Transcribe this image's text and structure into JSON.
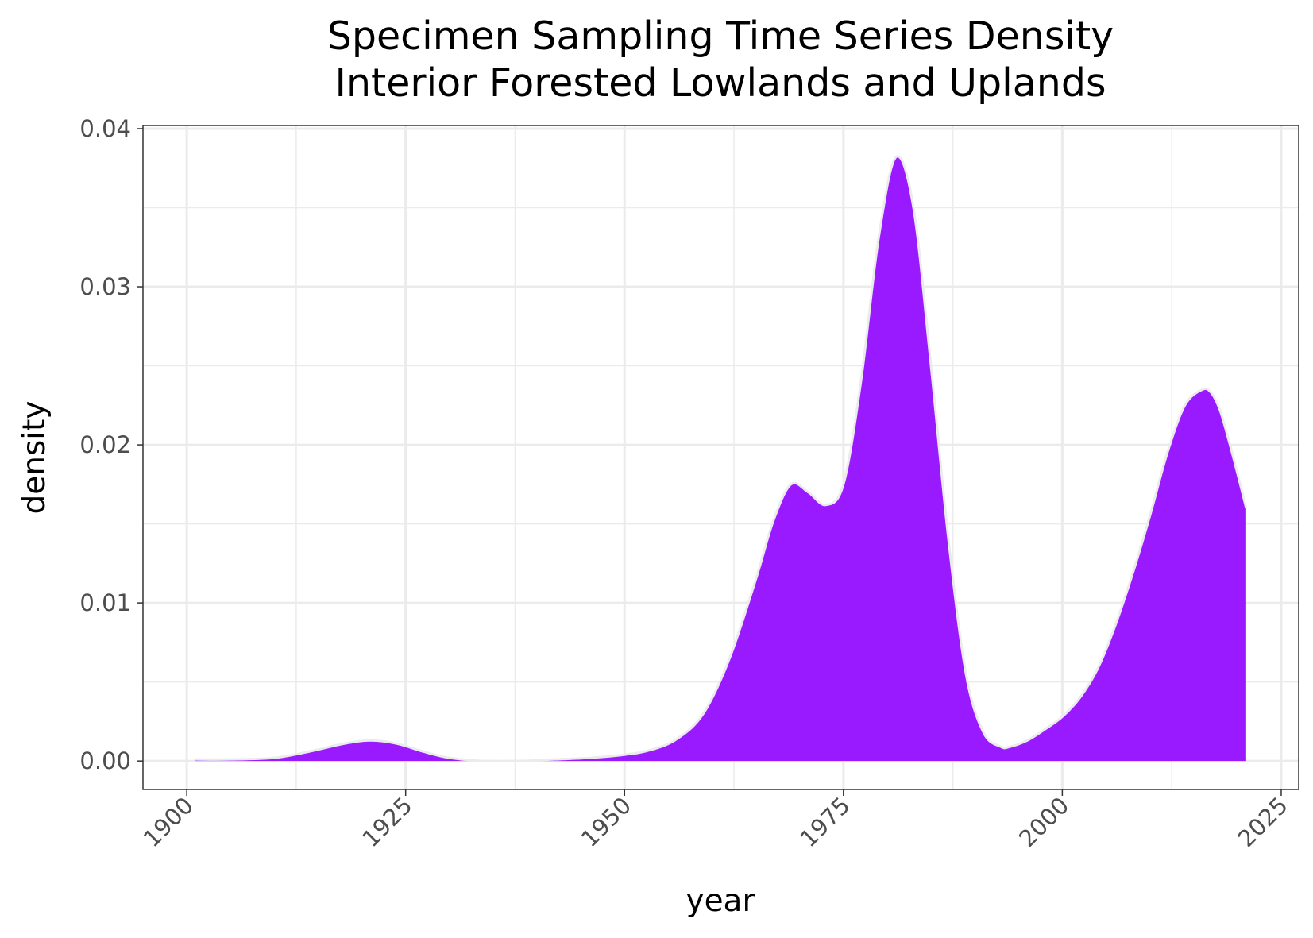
{
  "chart_data": {
    "type": "area",
    "title": "Specimen Sampling Time Series Density",
    "subtitle": "Interior Forested Lowlands and Uplands",
    "xlabel": "year",
    "ylabel": "density",
    "xlim": [
      1895,
      2027
    ],
    "ylim": [
      -0.0018,
      0.0402
    ],
    "x_ticks": [
      1900,
      1925,
      1950,
      1975,
      2000,
      2025
    ],
    "x_tick_labels": [
      "1900",
      "1925",
      "1950",
      "1975",
      "2000",
      "2025"
    ],
    "y_ticks": [
      0,
      0.01,
      0.02,
      0.03,
      0.04
    ],
    "y_tick_labels": [
      "0.00",
      "0.01",
      "0.02",
      "0.03",
      "0.04"
    ],
    "grid": true,
    "fill_color": "#9a1aff",
    "outline_color": "#ebebeb",
    "series": [
      {
        "x": [
          1901,
          1905,
          1910,
          1914,
          1918,
          1921,
          1924,
          1927,
          1930,
          1934,
          1938,
          1942,
          1946,
          1950,
          1953,
          1956,
          1959,
          1962,
          1965,
          1967,
          1969,
          1971,
          1973,
          1975,
          1977,
          1979,
          1981,
          1983,
          1985,
          1987,
          1989,
          1991,
          1993,
          1994,
          1996,
          1998,
          2000,
          2002,
          2004,
          2006,
          2008,
          2010,
          2012,
          2014,
          2016,
          2017,
          2018,
          2019,
          2020,
          2021
        ],
        "y": [
          0.0001,
          0.0001,
          0.0002,
          0.0006,
          0.0011,
          0.0013,
          0.0011,
          0.0006,
          0.0002,
          0.0,
          0.0,
          0.0001,
          0.0002,
          0.0004,
          0.0007,
          0.0014,
          0.003,
          0.0065,
          0.0115,
          0.0152,
          0.0175,
          0.017,
          0.0162,
          0.0175,
          0.024,
          0.033,
          0.0382,
          0.035,
          0.025,
          0.014,
          0.0055,
          0.0018,
          0.0009,
          0.0009,
          0.0013,
          0.002,
          0.0028,
          0.004,
          0.0058,
          0.0085,
          0.0118,
          0.0155,
          0.0195,
          0.0225,
          0.0235,
          0.0233,
          0.0222,
          0.0203,
          0.0182,
          0.016
        ]
      }
    ]
  }
}
